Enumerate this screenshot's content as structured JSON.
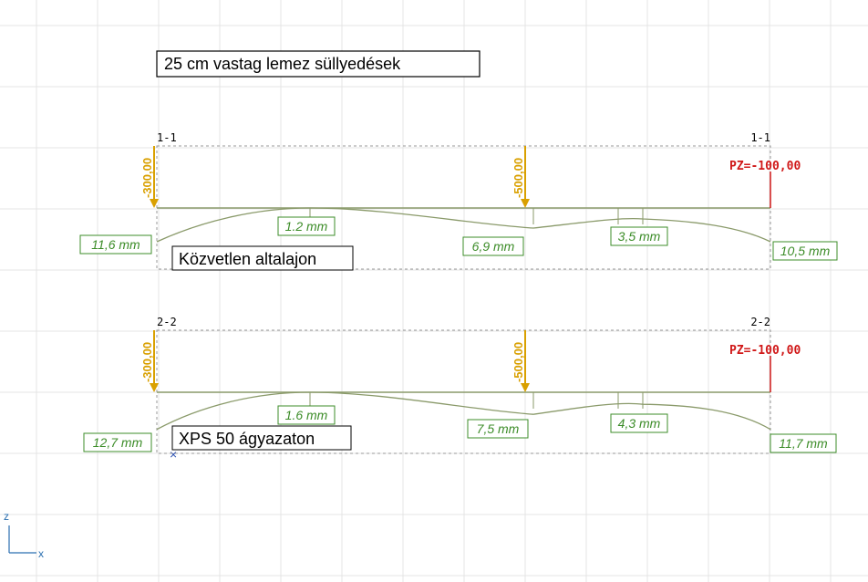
{
  "title": "25 cm vastag lemez süllyedések",
  "sections": [
    {
      "left_label": "1-1",
      "right_label": "1-1",
      "loads": [
        "-300,00",
        "-500,00",
        "PZ=-100,00"
      ],
      "deflections": [
        "11,6 mm",
        "1.2 mm",
        "6,9 mm",
        "3,5 mm",
        "10,5 mm"
      ],
      "caption": "Közvetlen altalajon"
    },
    {
      "left_label": "2-2",
      "right_label": "2-2",
      "loads": [
        "-300,00",
        "-500,00",
        "PZ=-100,00"
      ],
      "deflections": [
        "12,7 mm",
        "1.6 mm",
        "7,5 mm",
        "4,3 mm",
        "11,7 mm"
      ],
      "caption": "XPS 50 ágyazaton"
    }
  ],
  "axes": {
    "z": "z",
    "x": "x"
  }
}
